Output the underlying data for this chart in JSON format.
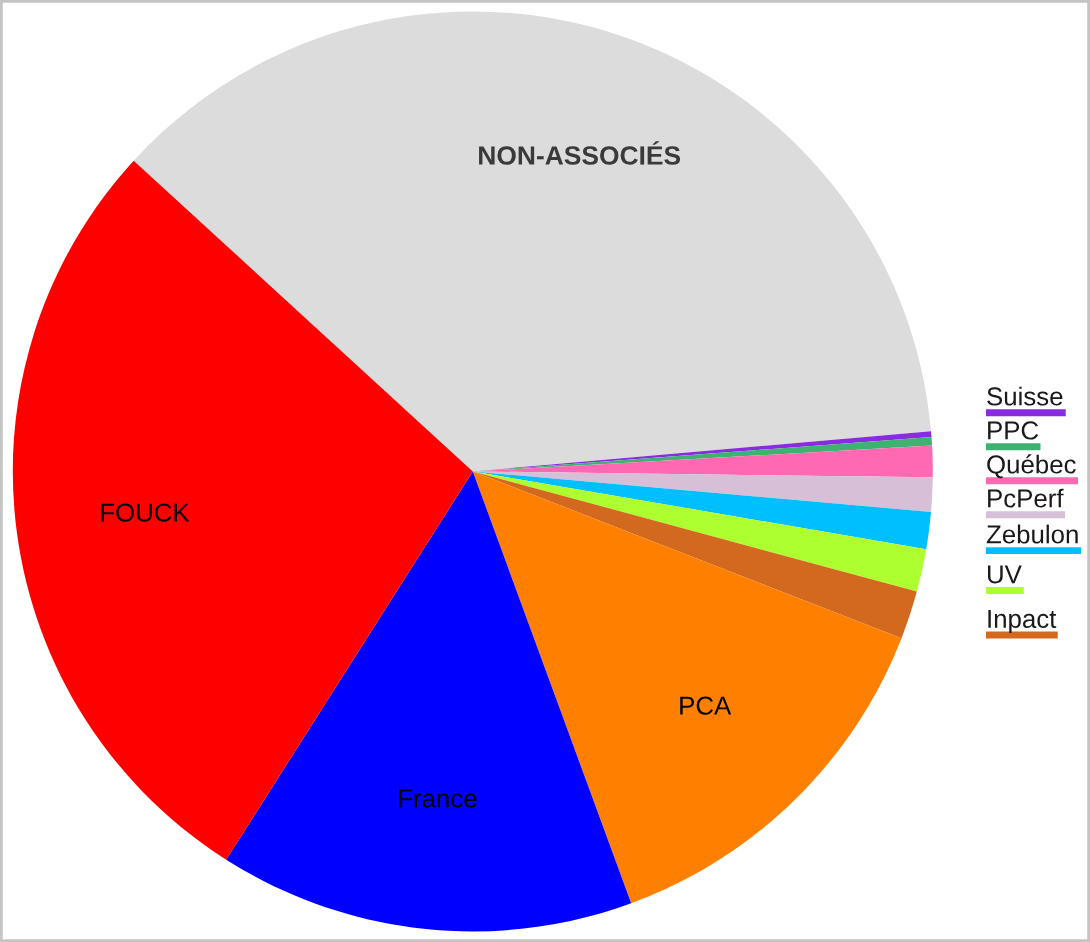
{
  "chart_data": {
    "type": "pie",
    "categories": [
      "NON-ASSOCIÉS",
      "Suisse",
      "PPC",
      "Québec",
      "PcPerf",
      "Zebulon",
      "UV",
      "Inpact",
      "PCA",
      "France",
      "FOUCK"
    ],
    "values": [
      36.8,
      0.2,
      0.3,
      1.1,
      1.2,
      1.3,
      1.5,
      1.7,
      13.5,
      14.6,
      27.8
    ],
    "colors": [
      "#dcdcdc",
      "#8a2be2",
      "#3cb371",
      "#ff69b4",
      "#d8bfd8",
      "#00bfff",
      "#adff2f",
      "#d2691e",
      "#ff8000",
      "#0000ff",
      "#ff0000"
    ]
  }
}
